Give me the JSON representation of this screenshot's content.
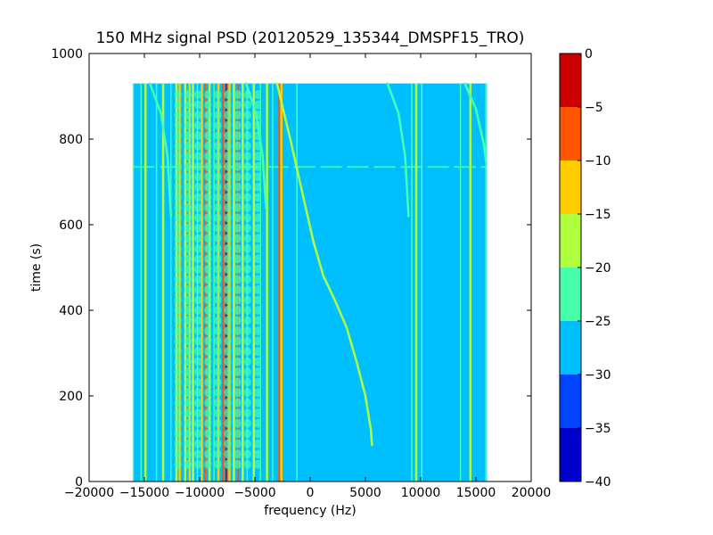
{
  "chart_data": {
    "type": "heatmap",
    "title": "150 MHz signal PSD (20120529_135344_DMSPF15_TRO)",
    "xlabel": "frequency (Hz)",
    "ylabel": "time (s)",
    "xlim": [
      -20000,
      20000
    ],
    "ylim": [
      0,
      1000
    ],
    "xticks": [
      -20000,
      -15000,
      -10000,
      -5000,
      0,
      5000,
      10000,
      15000,
      20000
    ],
    "xtick_labels": [
      "−20000",
      "−15000",
      "−10000",
      "−5000",
      "0",
      "5000",
      "10000",
      "15000",
      "20000"
    ],
    "yticks": [
      0,
      200,
      400,
      600,
      800,
      1000
    ],
    "ytick_labels": [
      "0",
      "200",
      "400",
      "600",
      "800",
      "1000"
    ],
    "data_extent": {
      "freq_min": -16000,
      "freq_max": 16000,
      "time_min": 0,
      "time_max": 930
    },
    "background_level": -27.5,
    "vertical_lines": [
      {
        "freq": -16000,
        "level": -22.5
      },
      {
        "freq": -15300,
        "level": -22.5
      },
      {
        "freq": -14900,
        "level": -17.5
      },
      {
        "freq": -13900,
        "level": -22.5
      },
      {
        "freq": -13300,
        "level": -17.5
      },
      {
        "freq": -12600,
        "level": -22.5
      },
      {
        "freq": -12100,
        "level": -17.5
      },
      {
        "freq": -11800,
        "level": -12.5
      },
      {
        "freq": -11300,
        "level": -17.5
      },
      {
        "freq": -10900,
        "level": -12.5
      },
      {
        "freq": -10600,
        "level": -17.5
      },
      {
        "freq": -10200,
        "level": -22.5
      },
      {
        "freq": -9800,
        "level": -12.5
      },
      {
        "freq": -9500,
        "level": -7.5
      },
      {
        "freq": -9100,
        "level": -17.5
      },
      {
        "freq": -8700,
        "level": -22.5
      },
      {
        "freq": -8300,
        "level": -12.5
      },
      {
        "freq": -7900,
        "level": -7.5
      },
      {
        "freq": -7600,
        "level": -2.5
      },
      {
        "freq": -7300,
        "level": -12.5
      },
      {
        "freq": -6900,
        "level": -17.5
      },
      {
        "freq": -6500,
        "level": -7.5
      },
      {
        "freq": -6100,
        "level": -17.5
      },
      {
        "freq": -5700,
        "level": -22.5
      },
      {
        "freq": -5100,
        "level": -17.5
      },
      {
        "freq": -4500,
        "level": -22.5
      },
      {
        "freq": -3900,
        "level": -17.5
      },
      {
        "freq": -3400,
        "level": -22.5
      },
      {
        "freq": -2800,
        "level": -7.5
      },
      {
        "freq": -2600,
        "level": -12.5
      },
      {
        "freq": -1200,
        "level": -22.5
      },
      {
        "freq": 9200,
        "level": -22.5
      },
      {
        "freq": 9600,
        "level": -17.5
      },
      {
        "freq": 10100,
        "level": -22.5
      },
      {
        "freq": 13600,
        "level": -22.5
      },
      {
        "freq": 14500,
        "level": -17.5
      },
      {
        "freq": 15900,
        "level": -22.5
      }
    ],
    "curve_traces": [
      {
        "name": "satellite-trace",
        "level": -17.5,
        "points": [
          [
            -3000,
            930
          ],
          [
            -1800,
            800
          ],
          [
            -400,
            640
          ],
          [
            300,
            560
          ],
          [
            1200,
            480
          ],
          [
            2300,
            420
          ],
          [
            3300,
            360
          ],
          [
            4200,
            280
          ],
          [
            5000,
            200
          ],
          [
            5500,
            120
          ],
          [
            5600,
            85
          ]
        ]
      },
      {
        "name": "arc-1",
        "level": -22.5,
        "points": [
          [
            -14500,
            930
          ],
          [
            -13500,
            860
          ],
          [
            -12900,
            760
          ],
          [
            -12600,
            620
          ]
        ]
      },
      {
        "name": "arc-2",
        "level": -22.5,
        "points": [
          [
            -5800,
            930
          ],
          [
            -4900,
            860
          ],
          [
            -4300,
            760
          ],
          [
            -4000,
            640
          ]
        ]
      },
      {
        "name": "arc-3",
        "level": -22.5,
        "points": [
          [
            7000,
            930
          ],
          [
            8000,
            860
          ],
          [
            8600,
            760
          ],
          [
            8900,
            620
          ]
        ]
      },
      {
        "name": "arc-4",
        "level": -22.5,
        "points": [
          [
            14000,
            930
          ],
          [
            15000,
            870
          ],
          [
            15700,
            790
          ],
          [
            15900,
            750
          ]
        ]
      }
    ],
    "horizontal_band": {
      "time": 735,
      "level": -22.5
    },
    "colorbar": {
      "ticks": [
        0,
        -5,
        -10,
        -15,
        -20,
        -25,
        -30,
        -35,
        -40
      ],
      "tick_labels": [
        "0",
        "−5",
        "−10",
        "−15",
        "−20",
        "−25",
        "−30",
        "−35",
        "−40"
      ],
      "levels": [
        {
          "from": -5,
          "to": 0,
          "color": "#cc0000"
        },
        {
          "from": -10,
          "to": -5,
          "color": "#ff5500"
        },
        {
          "from": -15,
          "to": -10,
          "color": "#ffcc00"
        },
        {
          "from": -20,
          "to": -15,
          "color": "#b0ff3f"
        },
        {
          "from": -25,
          "to": -20,
          "color": "#46ffaa"
        },
        {
          "from": -30,
          "to": -25,
          "color": "#00bfff"
        },
        {
          "from": -35,
          "to": -30,
          "color": "#0044ff"
        },
        {
          "from": -40,
          "to": -35,
          "color": "#0000cc"
        }
      ]
    }
  }
}
